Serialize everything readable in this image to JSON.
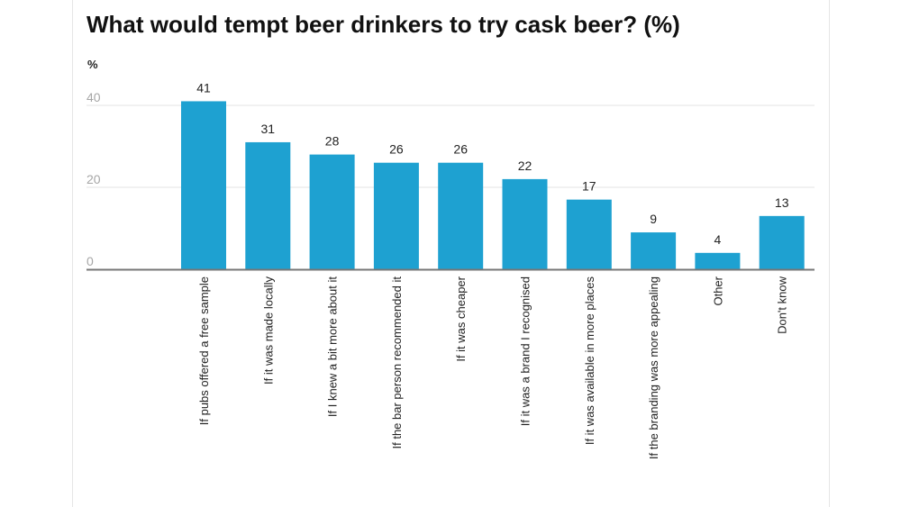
{
  "chart_data": {
    "type": "bar",
    "title": "What would tempt beer drinkers to try cask beer? (%)",
    "ylabel": "%",
    "xlabel": "",
    "ylim": [
      0,
      40
    ],
    "yticks": [
      0,
      20,
      40
    ],
    "grid": true,
    "categories": [
      "If pubs offered a free sample",
      "If it was made locally",
      "If I knew a bit more about it",
      "If the bar person recommended it",
      "If it was cheaper",
      "If it was a brand I recognised",
      "If it was available in more places",
      "If the branding was more appealing",
      "Other",
      "Don't know"
    ],
    "values": [
      41,
      31,
      28,
      26,
      26,
      22,
      17,
      9,
      4,
      13
    ],
    "bar_color": "#1ea1d1",
    "gridline_color": "#e3e3e3",
    "baseline_color": "#777777",
    "tick_color": "#a6a6a6"
  }
}
